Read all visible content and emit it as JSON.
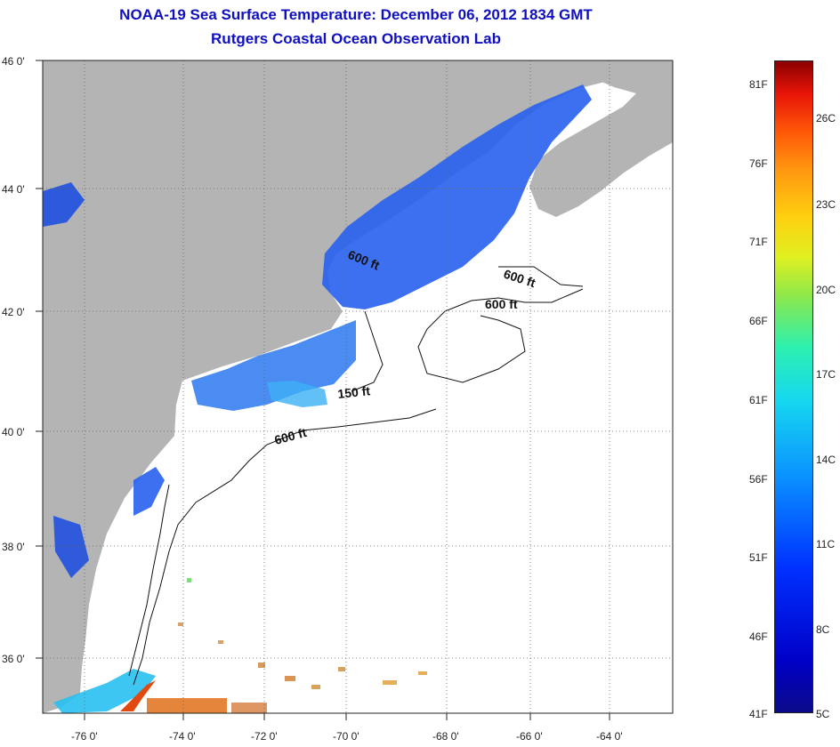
{
  "title": {
    "line1": "NOAA-19 Sea Surface Temperature:  December 06, 2012 1834 GMT",
    "line2": "Rutgers Coastal Ocean Observation Lab"
  },
  "map": {
    "lon_ticks": [
      "-76 0'",
      "-74 0'",
      "-72 0'",
      "-70 0'",
      "-68 0'",
      "-66 0'",
      "-64 0'"
    ],
    "lat_ticks": [
      "46 0'",
      "44 0'",
      "42 0'",
      "40 0'",
      "38 0'",
      "36 0'"
    ],
    "contour_labels": [
      "600 ft",
      "600 ft",
      "600 ft",
      "150 ft",
      "600 ft"
    ],
    "land_color": "#b4b4b4",
    "ocean_color": "#ffffff"
  },
  "colorbar": {
    "fahrenheit": [
      "81F",
      "76F",
      "71F",
      "66F",
      "61F",
      "56F",
      "51F",
      "46F",
      "41F"
    ],
    "celsius": [
      "26C",
      "23C",
      "20C",
      "17C",
      "14C",
      "11C",
      "8C",
      "5C"
    ]
  }
}
